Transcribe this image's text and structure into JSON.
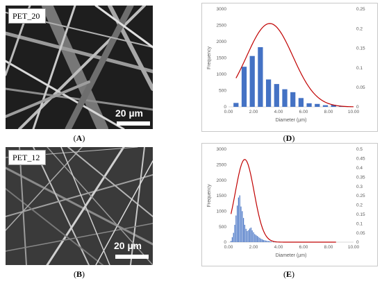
{
  "figure": {
    "panels": {
      "A": {
        "label": "PET_20",
        "scale": "20 µm",
        "caption_label": "A"
      },
      "B": {
        "label": "PET_12",
        "scale": "20 µm",
        "caption_label": "B"
      },
      "D": {
        "caption_label": "D"
      },
      "E": {
        "caption_label": "E"
      }
    }
  },
  "colors": {
    "bar": "#4472c4",
    "curve": "#c00000",
    "gridline": "#d9d9d9",
    "axis_text": "#595959"
  },
  "chart_data": [
    {
      "id": "D",
      "type": "bar",
      "xlabel": "Diameter (µm)",
      "ylabel": "Frequency",
      "x_ticks": [
        "0.00",
        "2.00",
        "4.00",
        "6.00",
        "8.00",
        "10.00"
      ],
      "xlim": [
        0,
        10
      ],
      "ylim": [
        0,
        3000
      ],
      "y_ticks": [
        "0",
        "500",
        "1000",
        "1500",
        "2000",
        "2500",
        "3000"
      ],
      "y2lim": [
        0,
        0.25
      ],
      "y2_ticks": [
        "0",
        "0.05",
        "0.1",
        "0.15",
        "0.2",
        "0.25"
      ],
      "bars": [
        {
          "x": 0.6,
          "y": 120
        },
        {
          "x": 1.25,
          "y": 1230
        },
        {
          "x": 1.9,
          "y": 1560
        },
        {
          "x": 2.55,
          "y": 1830
        },
        {
          "x": 3.2,
          "y": 840
        },
        {
          "x": 3.85,
          "y": 700
        },
        {
          "x": 4.5,
          "y": 540
        },
        {
          "x": 5.15,
          "y": 450
        },
        {
          "x": 5.8,
          "y": 270
        },
        {
          "x": 6.45,
          "y": 110
        },
        {
          "x": 7.1,
          "y": 90
        },
        {
          "x": 7.75,
          "y": 50
        },
        {
          "x": 8.4,
          "y": 60
        },
        {
          "x": 9.05,
          "y": 20
        }
      ],
      "curve": {
        "mean": 3.3,
        "sd": 1.85,
        "peak": 0.213,
        "x_from": 0.6,
        "x_to": 10
      }
    },
    {
      "id": "E",
      "type": "bar",
      "xlabel": "Diameter (µm)",
      "ylabel": "Frequency",
      "x_ticks": [
        "0.00",
        "2.00",
        "4.00",
        "6.00",
        "8.00",
        "10.00"
      ],
      "xlim": [
        0,
        10
      ],
      "ylim": [
        0,
        3000
      ],
      "y_ticks": [
        "0",
        "500",
        "1000",
        "1500",
        "2000",
        "2500",
        "3000"
      ],
      "y2lim": [
        0,
        0.5
      ],
      "y2_ticks": [
        "0",
        "0.05",
        "0.1",
        "0.15",
        "0.2",
        "0.25",
        "0.3",
        "0.35",
        "0.4",
        "0.45",
        "0.5"
      ],
      "bars": [
        {
          "x": 0.2,
          "y": 40
        },
        {
          "x": 0.3,
          "y": 160
        },
        {
          "x": 0.4,
          "y": 300
        },
        {
          "x": 0.5,
          "y": 560
        },
        {
          "x": 0.6,
          "y": 860
        },
        {
          "x": 0.7,
          "y": 1180
        },
        {
          "x": 0.8,
          "y": 1440
        },
        {
          "x": 0.9,
          "y": 1510
        },
        {
          "x": 1.0,
          "y": 1150
        },
        {
          "x": 1.1,
          "y": 1000
        },
        {
          "x": 1.2,
          "y": 780
        },
        {
          "x": 1.3,
          "y": 560
        },
        {
          "x": 1.4,
          "y": 430
        },
        {
          "x": 1.5,
          "y": 360
        },
        {
          "x": 1.6,
          "y": 390
        },
        {
          "x": 1.7,
          "y": 440
        },
        {
          "x": 1.8,
          "y": 470
        },
        {
          "x": 1.9,
          "y": 380
        },
        {
          "x": 2.0,
          "y": 320
        },
        {
          "x": 2.1,
          "y": 260
        },
        {
          "x": 2.2,
          "y": 230
        },
        {
          "x": 2.3,
          "y": 200
        },
        {
          "x": 2.4,
          "y": 170
        },
        {
          "x": 2.5,
          "y": 140
        },
        {
          "x": 2.6,
          "y": 110
        },
        {
          "x": 2.7,
          "y": 90
        },
        {
          "x": 2.8,
          "y": 70
        },
        {
          "x": 2.9,
          "y": 60
        },
        {
          "x": 3.0,
          "y": 50
        },
        {
          "x": 3.1,
          "y": 40
        },
        {
          "x": 3.2,
          "y": 35
        },
        {
          "x": 3.3,
          "y": 30
        },
        {
          "x": 3.4,
          "y": 25
        },
        {
          "x": 3.6,
          "y": 20
        },
        {
          "x": 3.8,
          "y": 15
        },
        {
          "x": 4.0,
          "y": 10
        }
      ],
      "curve": {
        "mean": 1.3,
        "sd": 0.75,
        "peak": 0.445,
        "x_from": 0.2,
        "x_to": 8.6
      }
    }
  ]
}
